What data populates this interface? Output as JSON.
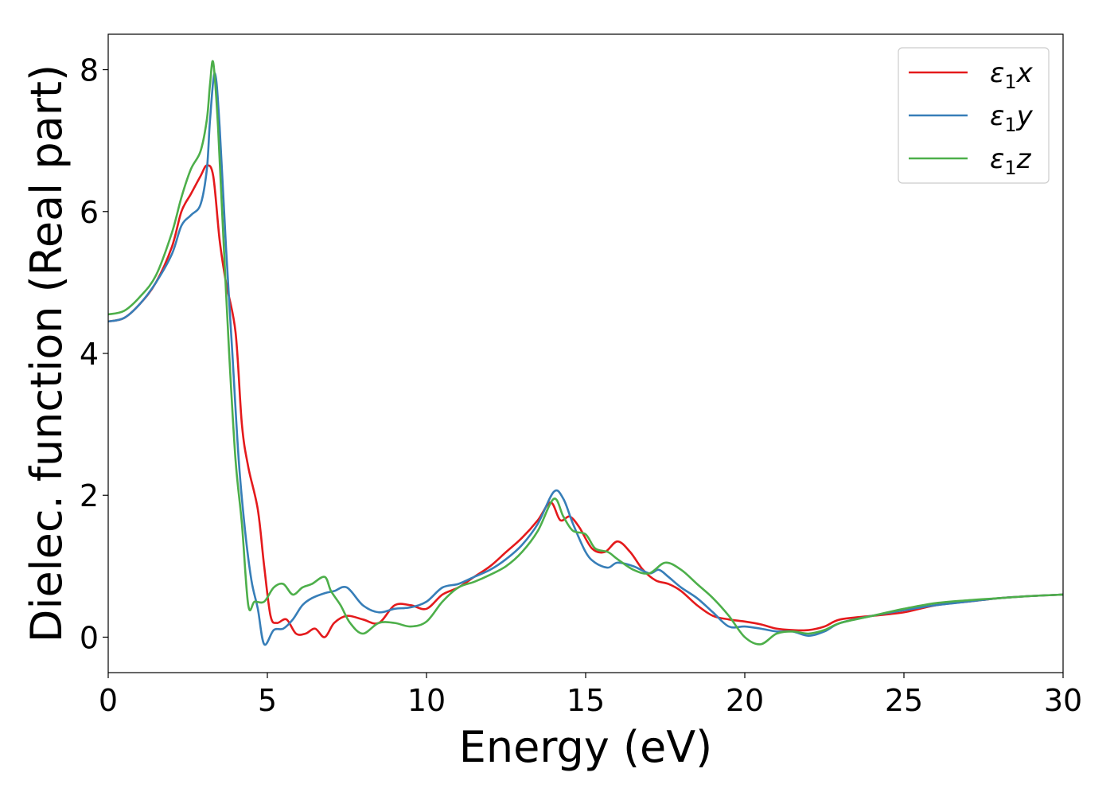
{
  "chart_data": {
    "type": "line",
    "xlabel": "Energy (eV)",
    "ylabel": "Dielec. function (Real part)",
    "xlim": [
      0,
      30
    ],
    "ylim": [
      -0.5,
      8.5
    ],
    "xticks": [
      0,
      5,
      10,
      15,
      20,
      25,
      30
    ],
    "yticks": [
      0,
      2,
      4,
      6,
      8
    ],
    "grid": false,
    "legend_position": "top-right",
    "series": [
      {
        "name": "ε1x",
        "legend_base": "ε",
        "legend_sub": "1",
        "legend_var": "x",
        "color": "#e41a1c",
        "x": [
          0,
          0.5,
          1.0,
          1.5,
          2.0,
          2.3,
          2.6,
          2.9,
          3.1,
          3.3,
          3.5,
          3.7,
          4.0,
          4.2,
          4.4,
          4.7,
          4.9,
          5.1,
          5.3,
          5.6,
          5.9,
          6.2,
          6.5,
          6.8,
          7.1,
          7.5,
          8.0,
          8.5,
          9.0,
          9.5,
          10.0,
          10.5,
          11.0,
          11.5,
          12.0,
          12.5,
          13.0,
          13.5,
          13.9,
          14.2,
          14.5,
          14.8,
          15.2,
          15.6,
          16.0,
          16.4,
          16.8,
          17.2,
          17.6,
          18.0,
          18.5,
          19.0,
          19.5,
          20.0,
          20.5,
          21.0,
          21.5,
          22.0,
          22.5,
          23.0,
          24.0,
          25.0,
          26.0,
          27.0,
          28.0,
          29.0,
          30.0
        ],
        "values": [
          4.45,
          4.5,
          4.7,
          5.0,
          5.5,
          6.0,
          6.25,
          6.5,
          6.65,
          6.5,
          5.6,
          5.0,
          4.3,
          3.0,
          2.4,
          1.8,
          1.0,
          0.3,
          0.2,
          0.25,
          0.05,
          0.05,
          0.12,
          0.0,
          0.2,
          0.3,
          0.25,
          0.2,
          0.45,
          0.45,
          0.4,
          0.6,
          0.7,
          0.85,
          1.0,
          1.2,
          1.4,
          1.65,
          1.9,
          1.65,
          1.7,
          1.55,
          1.25,
          1.2,
          1.35,
          1.2,
          0.95,
          0.8,
          0.75,
          0.65,
          0.45,
          0.3,
          0.25,
          0.22,
          0.18,
          0.12,
          0.1,
          0.1,
          0.15,
          0.25,
          0.3,
          0.35,
          0.45,
          0.5,
          0.55,
          0.58,
          0.6
        ]
      },
      {
        "name": "ε1y",
        "legend_base": "ε",
        "legend_sub": "1",
        "legend_var": "y",
        "color": "#377eb8",
        "x": [
          0,
          0.5,
          1.0,
          1.5,
          2.0,
          2.3,
          2.6,
          2.9,
          3.1,
          3.2,
          3.35,
          3.5,
          3.7,
          3.9,
          4.1,
          4.3,
          4.5,
          4.7,
          4.9,
          5.2,
          5.5,
          5.8,
          6.1,
          6.4,
          6.8,
          7.1,
          7.5,
          8.0,
          8.5,
          9.0,
          9.5,
          10.0,
          10.5,
          11.0,
          11.5,
          12.0,
          12.5,
          13.0,
          13.5,
          14.0,
          14.3,
          14.6,
          15.0,
          15.3,
          15.7,
          16.0,
          16.5,
          17.0,
          17.3,
          17.6,
          18.0,
          18.5,
          19.0,
          19.5,
          20.0,
          20.5,
          21.0,
          21.5,
          22.0,
          22.5,
          23.0,
          24.0,
          25.0,
          26.0,
          27.0,
          28.0,
          29.0,
          30.0
        ],
        "values": [
          4.45,
          4.5,
          4.7,
          5.0,
          5.4,
          5.8,
          5.95,
          6.1,
          6.6,
          7.3,
          7.95,
          7.2,
          5.5,
          4.0,
          2.5,
          1.5,
          0.8,
          0.4,
          -0.1,
          0.1,
          0.12,
          0.25,
          0.45,
          0.55,
          0.62,
          0.65,
          0.7,
          0.45,
          0.35,
          0.4,
          0.42,
          0.5,
          0.7,
          0.75,
          0.85,
          0.95,
          1.1,
          1.3,
          1.6,
          2.05,
          1.95,
          1.6,
          1.2,
          1.05,
          0.98,
          1.05,
          1.0,
          0.9,
          0.95,
          0.85,
          0.7,
          0.55,
          0.35,
          0.15,
          0.15,
          0.12,
          0.08,
          0.08,
          0.02,
          0.08,
          0.2,
          0.3,
          0.38,
          0.45,
          0.5,
          0.55,
          0.58,
          0.6
        ]
      },
      {
        "name": "ε1z",
        "legend_base": "ε",
        "legend_sub": "1",
        "legend_var": "z",
        "color": "#4daf4a",
        "x": [
          0,
          0.5,
          1.0,
          1.5,
          2.0,
          2.3,
          2.6,
          2.9,
          3.1,
          3.2,
          3.3,
          3.45,
          3.6,
          3.8,
          4.0,
          4.2,
          4.4,
          4.6,
          4.9,
          5.2,
          5.5,
          5.8,
          6.1,
          6.4,
          6.8,
          7.0,
          7.3,
          7.6,
          8.0,
          8.5,
          9.0,
          9.5,
          10.0,
          10.5,
          11.0,
          11.5,
          12.0,
          12.5,
          13.0,
          13.5,
          14.0,
          14.3,
          14.6,
          15.0,
          15.3,
          15.7,
          16.0,
          16.5,
          17.0,
          17.5,
          18.0,
          18.5,
          19.0,
          19.5,
          20.0,
          20.5,
          21.0,
          21.5,
          22.0,
          22.5,
          23.0,
          24.0,
          25.0,
          26.0,
          27.0,
          28.0,
          29.0,
          30.0
        ],
        "values": [
          4.55,
          4.6,
          4.8,
          5.1,
          5.7,
          6.2,
          6.6,
          6.85,
          7.3,
          7.8,
          8.1,
          7.2,
          5.8,
          4.0,
          2.5,
          1.6,
          0.45,
          0.5,
          0.5,
          0.7,
          0.75,
          0.6,
          0.7,
          0.75,
          0.85,
          0.65,
          0.45,
          0.2,
          0.05,
          0.2,
          0.2,
          0.15,
          0.22,
          0.5,
          0.7,
          0.78,
          0.88,
          1.0,
          1.2,
          1.5,
          1.95,
          1.7,
          1.5,
          1.45,
          1.25,
          1.2,
          1.1,
          0.95,
          0.9,
          1.05,
          0.95,
          0.75,
          0.55,
          0.3,
          0.0,
          -0.1,
          0.05,
          0.08,
          0.05,
          0.1,
          0.2,
          0.3,
          0.4,
          0.48,
          0.52,
          0.55,
          0.58,
          0.6
        ]
      }
    ]
  }
}
